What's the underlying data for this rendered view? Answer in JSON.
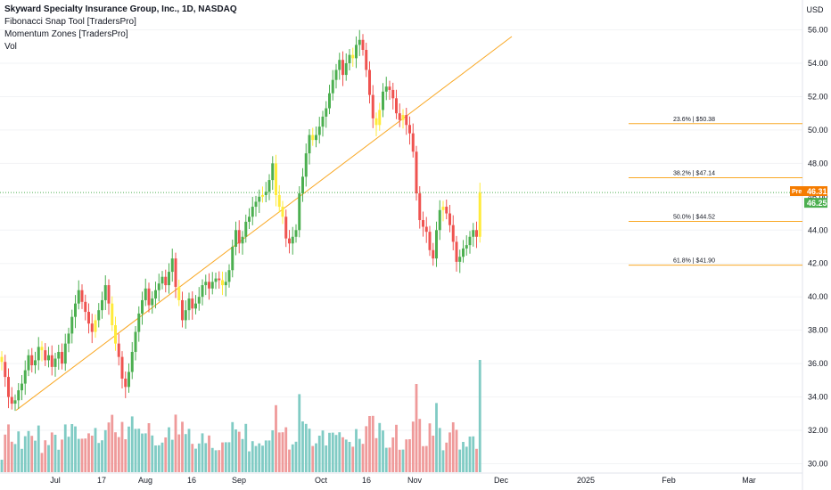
{
  "legend": {
    "title": "Skyward Specialty Insurance Group, Inc., 1D, NASDAQ",
    "indicator1": "Fibonacci Snap Tool [TradersPro]",
    "indicator2": "Momentum Zones [TradersPro]",
    "indicator3": "Vol"
  },
  "currency_label": "USD",
  "price_tags": {
    "pre_label": "Pre",
    "pre_value": "46.31",
    "last_value": "46.25"
  },
  "colors": {
    "up": "#4caf50",
    "down": "#ef5350",
    "neutral": "#ffeb3b",
    "vol_up": "#80cbc4",
    "vol_down": "#ef9a9a",
    "fib": "#f9a825",
    "pre_tag": "#f57c00",
    "last_tag": "#4caf50"
  },
  "chart_data": {
    "type": "candlestick",
    "ylim": [
      29.5,
      56.9
    ],
    "y_ticks": [
      "30.00",
      "32.00",
      "34.00",
      "36.00",
      "38.00",
      "40.00",
      "42.00",
      "44.00",
      "46.00",
      "48.00",
      "50.00",
      "52.00",
      "54.00",
      "56.00"
    ],
    "x_ticks": [
      "Jul",
      "17",
      "Aug",
      "16",
      "Sep",
      "Oct",
      "16",
      "Nov",
      "Dec",
      "2025",
      "Feb",
      "Mar"
    ],
    "last_price": 46.25,
    "pre_price": 46.31,
    "fib_levels": [
      {
        "label": "23.6% | $50.38",
        "value": 50.38
      },
      {
        "label": "38.2% | $47.14",
        "value": 47.14
      },
      {
        "label": "50.0% | $44.52",
        "value": 44.52
      },
      {
        "label": "61.8% | $41.90",
        "value": 41.9
      }
    ],
    "trend_line": {
      "from": 33.2,
      "to": 55.6
    },
    "closes": [
      36.1,
      35.2,
      34.0,
      33.6,
      33.8,
      34.4,
      34.8,
      35.6,
      36.5,
      35.9,
      36.2,
      37.0,
      36.8,
      36.2,
      36.5,
      35.8,
      36.3,
      36.7,
      36.0,
      37.2,
      37.8,
      38.8,
      39.6,
      40.4,
      39.7,
      39.1,
      38.4,
      37.9,
      38.6,
      39.2,
      39.8,
      40.7,
      39.6,
      38.3,
      37.2,
      36.4,
      35.1,
      34.6,
      35.5,
      36.7,
      37.9,
      39.0,
      39.8,
      40.5,
      39.5,
      39.9,
      40.4,
      40.8,
      41.2,
      40.7,
      41.5,
      42.3,
      40.6,
      39.8,
      38.6,
      39.2,
      39.9,
      39.3,
      39.6,
      40.0,
      40.7,
      40.9,
      40.5,
      40.9,
      41.1,
      41.0,
      40.7,
      40.9,
      41.6,
      43.0,
      44.0,
      43.2,
      43.6,
      44.5,
      44.8,
      45.4,
      45.7,
      46.0,
      46.1,
      46.3,
      47.0,
      48.0,
      46.1,
      45.4,
      44.8,
      43.5,
      43.2,
      43.6,
      44.0,
      46.2,
      47.2,
      48.6,
      49.7,
      49.4,
      49.7,
      50.2,
      50.8,
      51.3,
      52.2,
      53.0,
      53.6,
      54.2,
      53.3,
      54.0,
      54.5,
      54.3,
      55.1,
      55.4,
      54.8,
      53.6,
      52.1,
      50.7,
      50.3,
      51.2,
      52.3,
      52.6,
      52.4,
      51.9,
      51.0,
      50.6,
      50.9,
      50.3,
      49.8,
      48.7,
      46.2,
      44.6,
      44.2,
      43.9,
      42.8,
      42.3,
      44.0,
      45.2,
      45.4,
      45.0,
      44.3,
      43.3,
      42.1,
      42.4,
      42.9,
      43.1,
      43.6,
      44.0,
      43.6,
      46.25
    ]
  }
}
